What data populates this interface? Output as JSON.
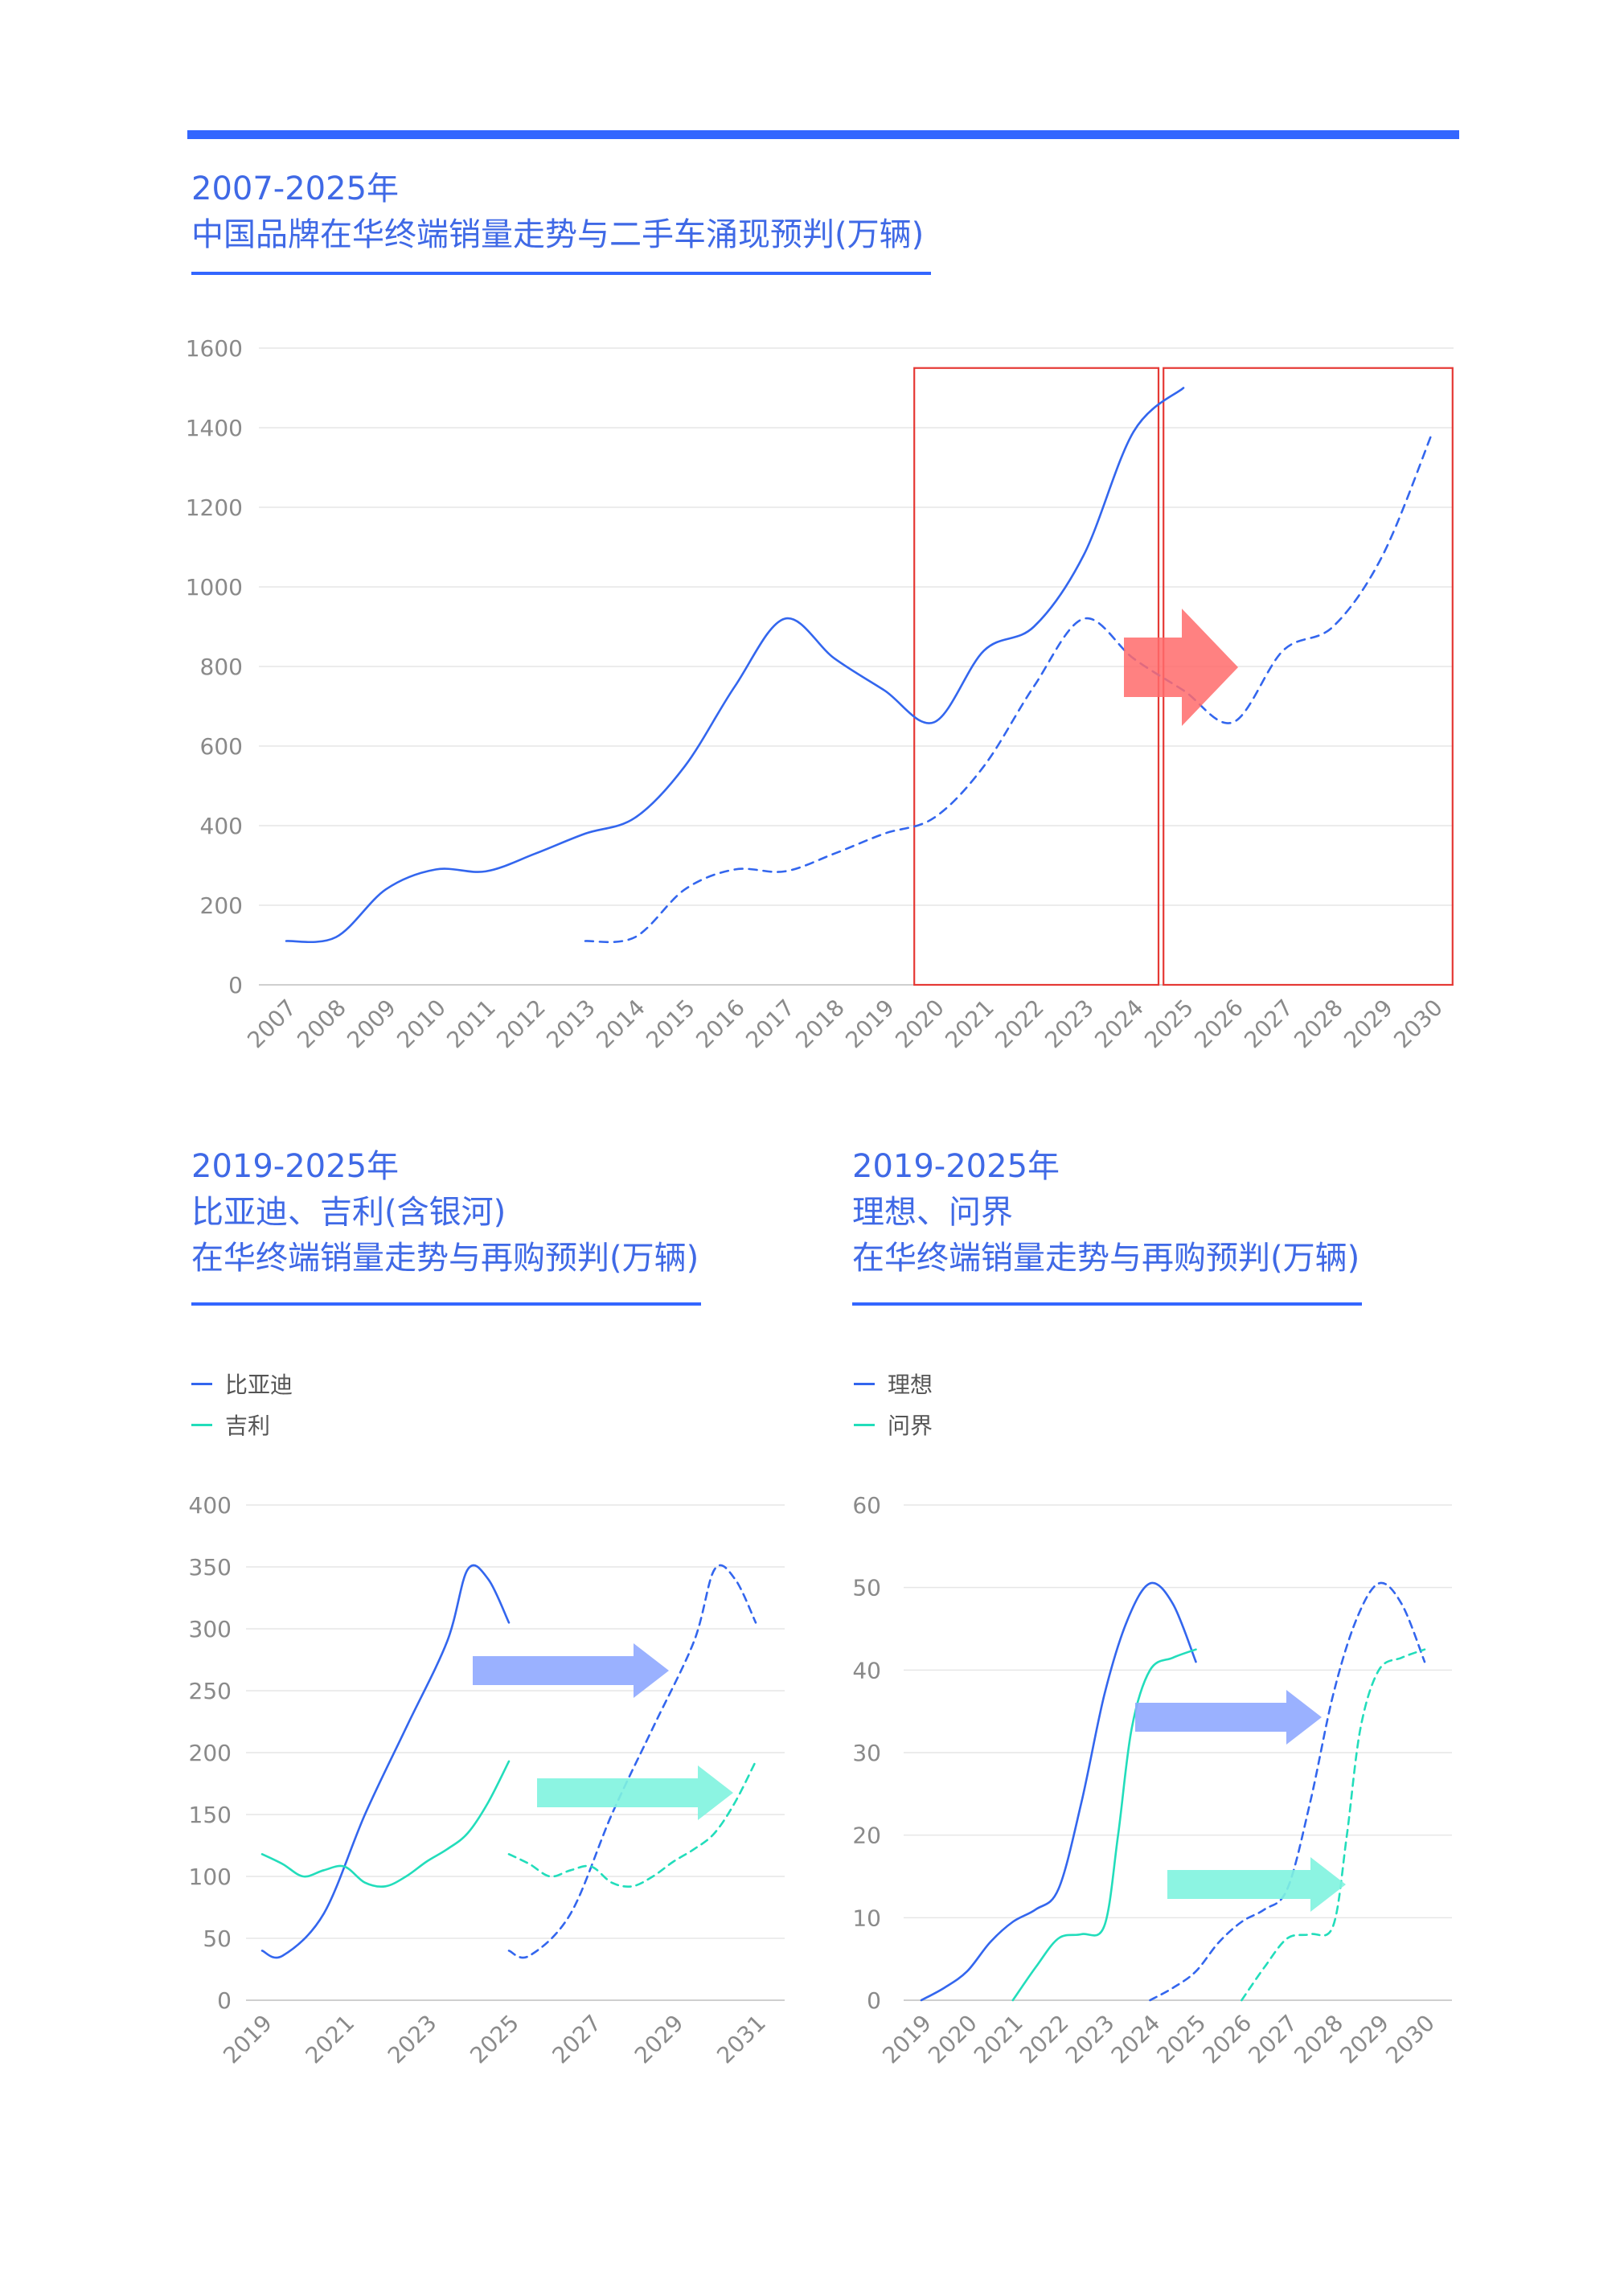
{
  "colors": {
    "blue": "#3366ee",
    "teal": "#22ddbb",
    "highlight_red": "#e53935",
    "arrow_red": "#ff6b6b",
    "arrow_blue": "#8fa8ff",
    "arrow_teal": "#7ff3df",
    "title_blue": "#3f69e6"
  },
  "top": {
    "title_line1": "2007-2025年",
    "title_line2": "中国品牌在华终端销量走势与二手车涌现预判(万辆)"
  },
  "bottom_left": {
    "title_line1": "2019-2025年",
    "title_line2": "比亚迪、吉利(含银河)",
    "title_line3": "在华终端销量走势与再购预判(万辆)",
    "legend": [
      {
        "label": "比亚迪",
        "color": "#3366ee"
      },
      {
        "label": "吉利",
        "color": "#22ddbb"
      }
    ]
  },
  "bottom_right": {
    "title_line1": "2019-2025年",
    "title_line2": "理想、问界",
    "title_line3": "在华终端销量走势与再购预判(万辆)",
    "legend": [
      {
        "label": "理想",
        "color": "#3366ee"
      },
      {
        "label": "问界",
        "color": "#22ddbb"
      }
    ]
  },
  "chart_data": [
    {
      "type": "line",
      "title": "2007-2025年 中国品牌在华终端销量走势与二手车涌现预判(万辆)",
      "categories": [
        "2007",
        "2008",
        "2009",
        "2010",
        "2011",
        "2012",
        "2013",
        "2014",
        "2015",
        "2016",
        "2017",
        "2018",
        "2019",
        "2020",
        "2021",
        "2022",
        "2023",
        "2024",
        "2025",
        "2026",
        "2027",
        "2028",
        "2029",
        "2030"
      ],
      "yticks": [
        0,
        200,
        400,
        600,
        800,
        1000,
        1200,
        1400,
        1600
      ],
      "ylim": [
        0,
        1600
      ],
      "grid": true,
      "series": [
        {
          "style": "solid",
          "x": [
            2007,
            2008,
            2009,
            2010,
            2011,
            2012,
            2013,
            2014,
            2015,
            2016,
            2017,
            2018,
            2019,
            2020,
            2021,
            2022,
            2023,
            2024,
            2025
          ],
          "values": [
            110,
            120,
            240,
            290,
            285,
            330,
            380,
            420,
            550,
            750,
            920,
            820,
            740,
            660,
            840,
            900,
            1080,
            1390,
            1500
          ]
        },
        {
          "style": "dashed",
          "x": [
            2013,
            2014,
            2015,
            2016,
            2017,
            2018,
            2019,
            2020,
            2021,
            2022,
            2023,
            2024,
            2025,
            2026,
            2027,
            2028,
            2029,
            2030
          ],
          "values": [
            110,
            120,
            240,
            290,
            285,
            330,
            380,
            420,
            550,
            750,
            920,
            820,
            740,
            660,
            840,
            900,
            1080,
            1390
          ]
        }
      ],
      "highlight_ranges": [
        [
          2019.6,
          2024.5
        ],
        [
          2024.6,
          2030.4
        ]
      ]
    },
    {
      "type": "line",
      "title": "2019-2025年 比亚迪、吉利(含银河) 在华终端销量走势与再购预判(万辆)",
      "categories": [
        "2019",
        "2021",
        "2023",
        "2025",
        "2027",
        "2029",
        "2031"
      ],
      "yticks": [
        0,
        50,
        100,
        150,
        200,
        250,
        300,
        350,
        400
      ],
      "ylim": [
        0,
        400
      ],
      "grid": true,
      "series": [
        {
          "name": "比亚迪",
          "style": "solid",
          "x": [
            2019,
            2019.5,
            2020.5,
            2021.5,
            2022.5,
            2023.5,
            2024,
            2024.5,
            2025
          ],
          "values": [
            40,
            36,
            70,
            150,
            220,
            290,
            348,
            340,
            305
          ]
        },
        {
          "name": "吉利",
          "style": "solid",
          "x": [
            2019,
            2019.5,
            2020,
            2020.5,
            2021,
            2021.5,
            2022,
            2022.5,
            2023,
            2023.5,
            2024,
            2024.5,
            2025
          ],
          "values": [
            118,
            110,
            100,
            105,
            108,
            95,
            92,
            100,
            112,
            122,
            135,
            160,
            193
          ]
        },
        {
          "name": "比亚迪",
          "style": "dashed",
          "x": [
            2025,
            2025.5,
            2026.5,
            2027.5,
            2028.5,
            2029.5,
            2030,
            2030.5,
            2031
          ],
          "values": [
            40,
            36,
            70,
            150,
            220,
            290,
            348,
            340,
            305
          ]
        },
        {
          "name": "吉利",
          "style": "dashed",
          "x": [
            2025,
            2025.5,
            2026,
            2026.5,
            2027,
            2027.5,
            2028,
            2028.5,
            2029,
            2029.5,
            2030,
            2030.5,
            2031
          ],
          "values": [
            118,
            110,
            100,
            105,
            108,
            95,
            92,
            100,
            112,
            122,
            135,
            160,
            193
          ]
        }
      ]
    },
    {
      "type": "line",
      "title": "2019-2025年 理想、问界 在华终端销量走势与再购预判(万辆)",
      "categories": [
        "2019",
        "2020",
        "2021",
        "2022",
        "2023",
        "2024",
        "2025",
        "2026",
        "2027",
        "2028",
        "2029",
        "2030"
      ],
      "yticks": [
        0,
        10,
        20,
        30,
        40,
        50,
        60
      ],
      "ylim": [
        0,
        60
      ],
      "grid": true,
      "series": [
        {
          "name": "理想",
          "style": "solid",
          "x": [
            2019,
            2019.5,
            2020,
            2020.5,
            2021,
            2021.5,
            2022,
            2022.5,
            2023,
            2023.5,
            2024,
            2024.5,
            2025
          ],
          "values": [
            0,
            1.5,
            3.5,
            7,
            9.5,
            11,
            13.5,
            24,
            37,
            46,
            50.5,
            48,
            41
          ]
        },
        {
          "name": "问界",
          "style": "solid",
          "x": [
            2021,
            2021.5,
            2022,
            2022.5,
            2023,
            2023.3,
            2023.6,
            2024,
            2024.5,
            2025
          ],
          "values": [
            0,
            4,
            7.5,
            8,
            9,
            20,
            33,
            40,
            41.5,
            42.5
          ]
        },
        {
          "name": "理想",
          "style": "dashed",
          "x": [
            2024,
            2024.5,
            2025,
            2025.5,
            2026,
            2026.5,
            2027,
            2027.5,
            2028,
            2028.5,
            2029,
            2029.5,
            2030
          ],
          "values": [
            0,
            1.5,
            3.5,
            7,
            9.5,
            11,
            13.5,
            24,
            37,
            46,
            50.5,
            48,
            41
          ]
        },
        {
          "name": "问界",
          "style": "dashed",
          "x": [
            2026,
            2026.5,
            2027,
            2027.5,
            2028,
            2028.3,
            2028.6,
            2029,
            2029.5,
            2030
          ],
          "values": [
            0,
            4,
            7.5,
            8,
            9,
            20,
            33,
            40,
            41.5,
            42.5
          ]
        }
      ]
    }
  ]
}
